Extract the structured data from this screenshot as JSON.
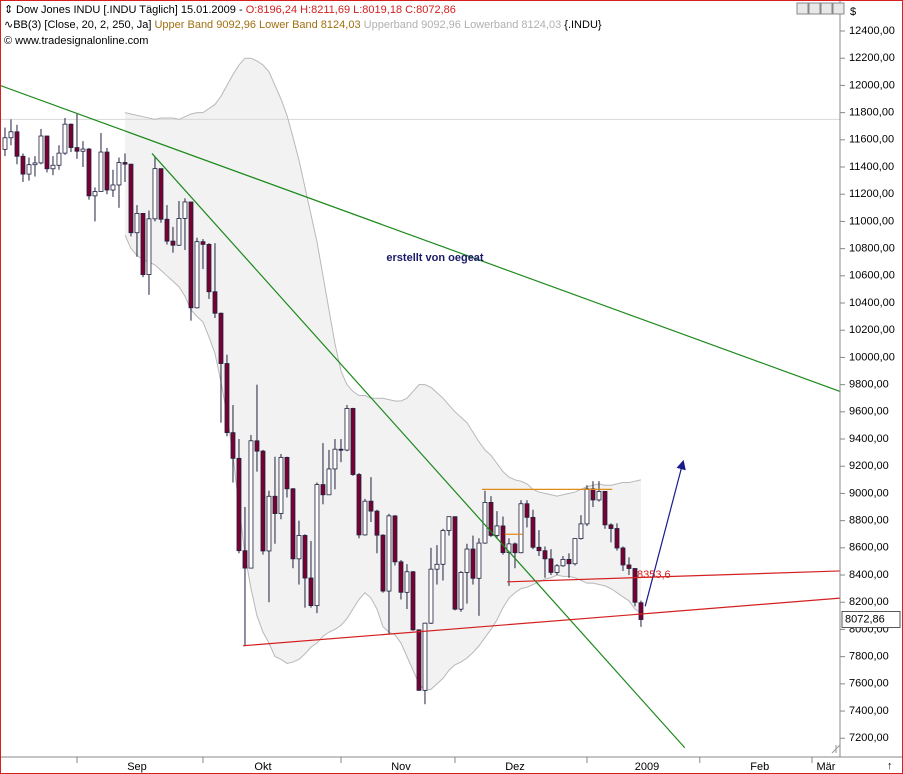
{
  "header": {
    "line1": "Dow Jones INDU [.INDU  Täglich] 15.01.2009 - ",
    "ohlc": "O:8196,24 H:8211,69 L:8019,18 C:8072,86",
    "line2": "BB(3) [Close, 20, 2, 250, Ja]",
    "bands": "Upper Band 9092,96 Lower Band 8124,03",
    "bands2": "Upperband 9092,96 Lowerband 8124,03",
    "symbol": "{.INDU}",
    "copyright": "© www.tradesignalonline.com",
    "currency": "$"
  },
  "chart_data": {
    "type": "candlestick",
    "annotation": "erstellt von oegeat",
    "xlim": [
      -0.83,
      139.17
    ],
    "ylim": [
      7062,
      12628
    ],
    "xticks": [
      {
        "value": 12,
        "label": "Sep"
      },
      {
        "value": 33,
        "label": "Okt"
      },
      {
        "value": 56,
        "label": "Nov"
      },
      {
        "value": 75,
        "label": "Dez"
      },
      {
        "value": 97,
        "label": "2009"
      },
      {
        "value": 115.8,
        "label": "Feb"
      },
      {
        "value": 134.5,
        "label": "Mär"
      }
    ],
    "yticks": [
      {
        "value": 7200,
        "label": "7200,00"
      },
      {
        "value": 7400,
        "label": "7400,00"
      },
      {
        "value": 7600,
        "label": "7600,00"
      },
      {
        "value": 7800,
        "label": "7800,00"
      },
      {
        "value": 8000,
        "label": "8000,00"
      },
      {
        "value": 8200,
        "label": "8200,00"
      },
      {
        "value": 8400,
        "label": "8400,00"
      },
      {
        "value": 8600,
        "label": "8600,00"
      },
      {
        "value": 8800,
        "label": "8800,00"
      },
      {
        "value": 9000,
        "label": "9000,00"
      },
      {
        "value": 9200,
        "label": "9200,00"
      },
      {
        "value": 9400,
        "label": "9400,00"
      },
      {
        "value": 9600,
        "label": "9600,00"
      },
      {
        "value": 9800,
        "label": "9800,00"
      },
      {
        "value": 10000,
        "label": "10000,00"
      },
      {
        "value": 10200,
        "label": "10200,00"
      },
      {
        "value": 10400,
        "label": "10400,00"
      },
      {
        "value": 10600,
        "label": "10600,00"
      },
      {
        "value": 10800,
        "label": "10800,00"
      },
      {
        "value": 11000,
        "label": "11000,00"
      },
      {
        "value": 11200,
        "label": "11200,00"
      },
      {
        "value": 11400,
        "label": "11400,00"
      },
      {
        "value": 11600,
        "label": "11600,00"
      },
      {
        "value": 11800,
        "label": "11800,00"
      },
      {
        "value": 12000,
        "label": "12000,00"
      },
      {
        "value": 12200,
        "label": "12200,00"
      },
      {
        "value": 12400,
        "label": "12400,00"
      }
    ],
    "up_color": "#ffffff",
    "down_color": "#7a0030",
    "band_color": "#b8b8b8",
    "reference_line": 11750,
    "last_price": {
      "value": 8072.86,
      "label": "8072,86"
    },
    "candles": [
      [
        11530,
        11690,
        11480,
        11615
      ],
      [
        11615,
        11750,
        11560,
        11659
      ],
      [
        11659,
        11710,
        11420,
        11479
      ],
      [
        11479,
        11500,
        11290,
        11348
      ],
      [
        11348,
        11470,
        11300,
        11417
      ],
      [
        11417,
        11480,
        11330,
        11430
      ],
      [
        11430,
        11680,
        11420,
        11628
      ],
      [
        11628,
        11630,
        11360,
        11387
      ],
      [
        11387,
        11480,
        11340,
        11413
      ],
      [
        11413,
        11560,
        11380,
        11502
      ],
      [
        11502,
        11760,
        11490,
        11715
      ],
      [
        11715,
        11720,
        11510,
        11543
      ],
      [
        11543,
        11790,
        11460,
        11516
      ],
      [
        11516,
        11590,
        11400,
        11532
      ],
      [
        11532,
        11540,
        11160,
        11188
      ],
      [
        11188,
        11250,
        11000,
        11220
      ],
      [
        11220,
        11650,
        11220,
        11510
      ],
      [
        11510,
        11540,
        11200,
        11231
      ],
      [
        11231,
        11380,
        11180,
        11268
      ],
      [
        11268,
        11470,
        11100,
        11433
      ],
      [
        11433,
        11500,
        11290,
        11421
      ],
      [
        11421,
        11420,
        10890,
        10917
      ],
      [
        10917,
        11120,
        10740,
        11059
      ],
      [
        11059,
        11060,
        10590,
        10609
      ],
      [
        10609,
        11080,
        10460,
        11019
      ],
      [
        11019,
        11480,
        11000,
        11388
      ],
      [
        11388,
        11390,
        10990,
        11016
      ],
      [
        11016,
        11120,
        10830,
        10855
      ],
      [
        10855,
        10960,
        10770,
        10825
      ],
      [
        10825,
        11150,
        10820,
        11022
      ],
      [
        11022,
        11170,
        10790,
        11143
      ],
      [
        11143,
        11140,
        10270,
        10365
      ],
      [
        10365,
        10880,
        10360,
        10851
      ],
      [
        10851,
        10870,
        10650,
        10831
      ],
      [
        10831,
        10840,
        10430,
        10483
      ],
      [
        10483,
        10840,
        10290,
        10325
      ],
      [
        10325,
        10330,
        9520,
        9955
      ],
      [
        9955,
        10020,
        9420,
        9447
      ],
      [
        9447,
        9650,
        9080,
        9258
      ],
      [
        9258,
        9400,
        8560,
        8579
      ],
      [
        8579,
        8900,
        7880,
        8451
      ],
      [
        8451,
        9430,
        8450,
        9387
      ],
      [
        9387,
        9800,
        9160,
        9311
      ],
      [
        9311,
        9320,
        8550,
        8577
      ],
      [
        8577,
        9020,
        8200,
        8979
      ],
      [
        8979,
        9270,
        8630,
        8852
      ],
      [
        8852,
        9290,
        8810,
        9265
      ],
      [
        9265,
        9270,
        8970,
        9034
      ],
      [
        9034,
        9040,
        8450,
        8519
      ],
      [
        8519,
        8800,
        8330,
        8691
      ],
      [
        8691,
        8700,
        8160,
        8378
      ],
      [
        8378,
        8650,
        8160,
        8175
      ],
      [
        8175,
        9080,
        8120,
        9065
      ],
      [
        9065,
        9370,
        8920,
        8990
      ],
      [
        8990,
        9320,
        8990,
        9180
      ],
      [
        9180,
        9400,
        9030,
        9325
      ],
      [
        9325,
        9400,
        9230,
        9319
      ],
      [
        9319,
        9650,
        9310,
        9625
      ],
      [
        9625,
        9630,
        9130,
        9139
      ],
      [
        9139,
        9150,
        8670,
        8695
      ],
      [
        8695,
        8960,
        8690,
        8943
      ],
      [
        8943,
        9120,
        8790,
        8870
      ],
      [
        8870,
        8880,
        8560,
        8693
      ],
      [
        8693,
        8700,
        8270,
        8282
      ],
      [
        8282,
        8850,
        7970,
        8835
      ],
      [
        8835,
        8840,
        8470,
        8497
      ],
      [
        8497,
        8510,
        8220,
        8273
      ],
      [
        8273,
        8480,
        8150,
        8424
      ],
      [
        8424,
        8430,
        7990,
        7997
      ],
      [
        7997,
        8000,
        7550,
        7552
      ],
      [
        7552,
        8050,
        7450,
        8046
      ],
      [
        8046,
        8600,
        8040,
        8443
      ],
      [
        8443,
        8620,
        8330,
        8479
      ],
      [
        8479,
        8740,
        8360,
        8727
      ],
      [
        8727,
        8830,
        8690,
        8829
      ],
      [
        8829,
        8830,
        8140,
        8149
      ],
      [
        8149,
        8430,
        8130,
        8419
      ],
      [
        8419,
        8630,
        8190,
        8591
      ],
      [
        8591,
        8690,
        8330,
        8376
      ],
      [
        8376,
        8670,
        8100,
        8635
      ],
      [
        8635,
        9020,
        8630,
        8934
      ],
      [
        8934,
        8980,
        8680,
        8691
      ],
      [
        8691,
        8870,
        8670,
        8761
      ],
      [
        8761,
        8830,
        8550,
        8565
      ],
      [
        8565,
        8670,
        8320,
        8629
      ],
      [
        8629,
        8640,
        8450,
        8564
      ],
      [
        8564,
        8950,
        8560,
        8924
      ],
      [
        8924,
        8950,
        8750,
        8824
      ],
      [
        8824,
        8880,
        8590,
        8604
      ],
      [
        8604,
        8730,
        8540,
        8579
      ],
      [
        8579,
        8610,
        8380,
        8519
      ],
      [
        8519,
        8590,
        8400,
        8419
      ],
      [
        8419,
        8480,
        8400,
        8468
      ],
      [
        8468,
        8540,
        8460,
        8515
      ],
      [
        8515,
        8560,
        8380,
        8483
      ],
      [
        8483,
        8670,
        8470,
        8668
      ],
      [
        8668,
        8840,
        8660,
        8776
      ],
      [
        8776,
        9060,
        8760,
        9034
      ],
      [
        9034,
        9090,
        8900,
        8952
      ],
      [
        8952,
        9090,
        8940,
        9015
      ],
      [
        9015,
        9010,
        8740,
        8769
      ],
      [
        8769,
        8780,
        8640,
        8742
      ],
      [
        8742,
        8780,
        8580,
        8599
      ],
      [
        8599,
        8610,
        8430,
        8474
      ],
      [
        8474,
        8530,
        8400,
        8448
      ],
      [
        8448,
        8450,
        8170,
        8200
      ],
      [
        8196.24,
        8211.69,
        8019.18,
        8072.86
      ]
    ],
    "upper_band": [
      null,
      null,
      null,
      null,
      null,
      null,
      null,
      null,
      null,
      null,
      null,
      null,
      null,
      null,
      null,
      null,
      null,
      null,
      null,
      null,
      11800,
      11790,
      11780,
      11770,
      11760,
      11750,
      11760,
      11760,
      11760,
      11750,
      11770,
      11790,
      11800,
      11800,
      11830,
      11860,
      11920,
      12000,
      12080,
      12150,
      12200,
      12200,
      12180,
      12150,
      12100,
      12000,
      11900,
      11780,
      11620,
      11450,
      11250,
      11050,
      10850,
      10600,
      10350,
      10100,
      9900,
      9800,
      9750,
      9720,
      9720,
      9700,
      9700,
      9700,
      9690,
      9680,
      9680,
      9700,
      9750,
      9800,
      9800,
      9780,
      9740,
      9700,
      9650,
      9600,
      9560,
      9520,
      9450,
      9380,
      9320,
      9280,
      9220,
      9160,
      9120,
      9100,
      9090,
      9070,
      9030,
      9010,
      9000,
      8990,
      8980,
      8990,
      9000,
      9010,
      9030,
      9050,
      9060,
      9070,
      9060,
      9060,
      9070,
      9080,
      9080,
      9090,
      9100
    ],
    "lower_band": [
      null,
      null,
      null,
      null,
      null,
      null,
      null,
      null,
      null,
      null,
      null,
      null,
      null,
      null,
      null,
      null,
      null,
      null,
      null,
      null,
      10900,
      10800,
      10750,
      10720,
      10700,
      10680,
      10640,
      10600,
      10560,
      10520,
      10450,
      10350,
      10300,
      10260,
      10150,
      10030,
      9820,
      9580,
      9280,
      8900,
      8550,
      8300,
      8100,
      7980,
      7900,
      7800,
      7780,
      7750,
      7760,
      7780,
      7820,
      7870,
      7900,
      7950,
      7980,
      8000,
      8030,
      8080,
      8150,
      8220,
      8270,
      8230,
      8150,
      8020,
      7980,
      7960,
      7900,
      7800,
      7700,
      7600,
      7550,
      7560,
      7600,
      7640,
      7700,
      7740,
      7760,
      7790,
      7830,
      7880,
      7940,
      8000,
      8070,
      8160,
      8230,
      8270,
      8300,
      8310,
      8330,
      8350,
      8370,
      8380,
      8400,
      8390,
      8390,
      8380,
      8360,
      8340,
      8340,
      8330,
      8320,
      8300,
      8270,
      8240,
      8210,
      8150,
      8120
    ],
    "trendlines": [
      {
        "color": "#1a8a1a",
        "x": [
          -0.83,
          139.17
        ],
        "y": [
          12000,
          9750
        ]
      },
      {
        "color": "#1a8a1a",
        "x": [
          24.5,
          113.3
        ],
        "y": [
          11500,
          7130
        ]
      },
      {
        "color": "#d42020",
        "x": [
          39.7,
          139.17
        ],
        "y": [
          7880,
          8230
        ]
      },
      {
        "color": "#d42020",
        "x": [
          83.7,
          139.17
        ],
        "y": [
          8350,
          8430
        ]
      },
      {
        "color": "#e08a1a",
        "x": [
          79.5,
          101.2
        ],
        "y": [
          9030,
          9030
        ]
      },
      {
        "color": "#e08a1a",
        "x": [
          83.3,
          86.2
        ],
        "y": [
          8700,
          8700
        ]
      },
      {
        "color": "#1a1a8a",
        "x": [
          106.7,
          113
        ],
        "y": [
          8170,
          9230
        ],
        "arrow": true
      }
    ],
    "level_label": {
      "value": 8353.6,
      "label": "8353,6"
    }
  }
}
